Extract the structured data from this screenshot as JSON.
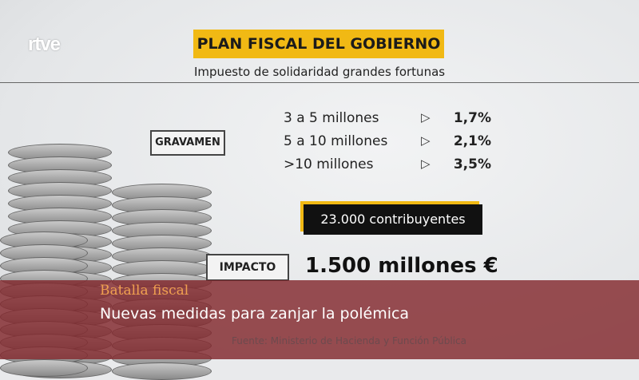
{
  "channel_logo": "rtve",
  "graphic": {
    "title": "PLAN FISCAL DEL GOBIERNO",
    "subtitle": "Impuesto de solidaridad grandes fortunas",
    "gravamen_label": "GRAVAMEN",
    "brackets": [
      {
        "range": "3 a 5 millones",
        "rate": "1,7%"
      },
      {
        "range": "5 a 10 millones",
        "rate": "2,1%"
      },
      {
        "range": ">10 millones",
        "rate": "3,5%"
      }
    ],
    "arrow_glyph": "▷",
    "contribuyentes": "23.000 contribuyentes",
    "impacto_label": "IMPACTO",
    "amount": "1.500 millones €",
    "source": "Fuente: Ministerio de Hacienda y Función Pública",
    "accent_color": "#f1b914"
  },
  "lower_third": {
    "kicker": "Batalla fiscal",
    "headline": "Nuevas medidas para zanjar la polémica",
    "color": "#82282d"
  }
}
